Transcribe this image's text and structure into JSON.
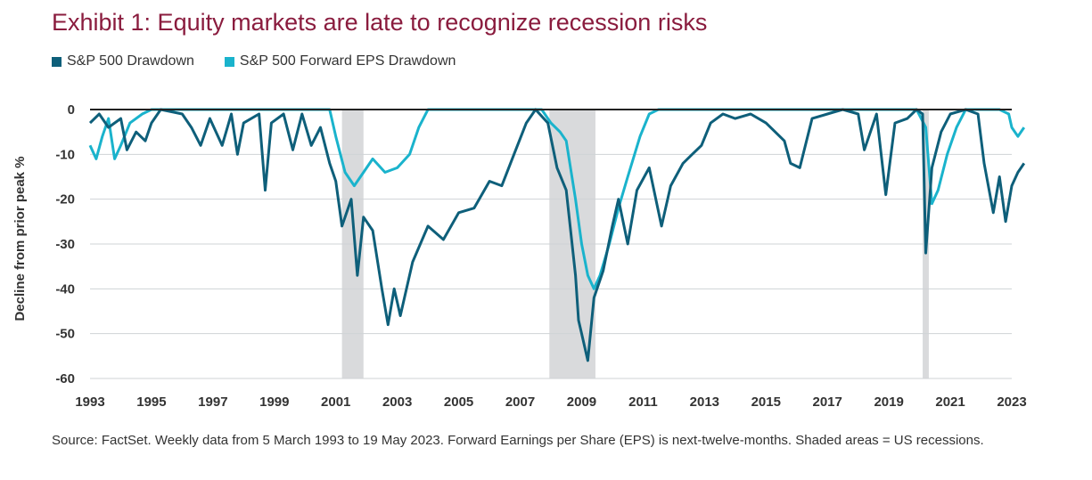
{
  "title": "Exhibit 1: Equity markets are late to recognize recession risks",
  "footnote": "Source: FactSet. Weekly data from 5 March 1993 to 19 May 2023. Forward Earnings per Share (EPS) is next-twelve-months. Shaded areas = US recessions.",
  "colors": {
    "spx": "#0e5f7a",
    "eps": "#1ab3cc",
    "recession": "#d9dadc",
    "grid": "#cfd3d6",
    "zero": "#222222",
    "title": "#8a1c3e"
  },
  "chart_data": {
    "type": "line",
    "title": "Exhibit 1: Equity markets are late to recognize recession risks",
    "ylabel": "Decline from prior peak %",
    "xlabel": "",
    "xlim": [
      1993,
      2023
    ],
    "ylim": [
      -60,
      0
    ],
    "x_ticks": [
      "1993",
      "1995",
      "1997",
      "1999",
      "2001",
      "2003",
      "2005",
      "2007",
      "2009",
      "2011",
      "2013",
      "2015",
      "2017",
      "2019",
      "2021",
      "2023"
    ],
    "y_ticks": [
      "0",
      "-10",
      "-20",
      "-30",
      "-40",
      "-50",
      "-60"
    ],
    "legend_position": "top-left",
    "grid": "horizontal",
    "recessions": [
      [
        2001.2,
        2001.9
      ],
      [
        2007.95,
        2009.45
      ],
      [
        2020.1,
        2020.3
      ]
    ],
    "series": [
      {
        "name": "S&P 500 Drawdown",
        "points": [
          [
            1993.0,
            -3
          ],
          [
            1993.3,
            -1
          ],
          [
            1993.6,
            -4
          ],
          [
            1994.0,
            -2
          ],
          [
            1994.2,
            -9
          ],
          [
            1994.5,
            -5
          ],
          [
            1994.8,
            -7
          ],
          [
            1995.0,
            -3
          ],
          [
            1995.3,
            0
          ],
          [
            1996.0,
            -1
          ],
          [
            1996.3,
            -4
          ],
          [
            1996.6,
            -8
          ],
          [
            1996.9,
            -2
          ],
          [
            1997.3,
            -8
          ],
          [
            1997.6,
            -1
          ],
          [
            1997.8,
            -10
          ],
          [
            1998.0,
            -3
          ],
          [
            1998.5,
            -1
          ],
          [
            1998.7,
            -18
          ],
          [
            1998.9,
            -3
          ],
          [
            1999.3,
            -1
          ],
          [
            1999.6,
            -9
          ],
          [
            1999.9,
            -1
          ],
          [
            2000.2,
            -8
          ],
          [
            2000.5,
            -4
          ],
          [
            2000.8,
            -12
          ],
          [
            2001.0,
            -16
          ],
          [
            2001.2,
            -26
          ],
          [
            2001.5,
            -20
          ],
          [
            2001.7,
            -37
          ],
          [
            2001.9,
            -24
          ],
          [
            2002.2,
            -27
          ],
          [
            2002.5,
            -40
          ],
          [
            2002.7,
            -48
          ],
          [
            2002.9,
            -40
          ],
          [
            2003.1,
            -46
          ],
          [
            2003.5,
            -34
          ],
          [
            2004.0,
            -26
          ],
          [
            2004.5,
            -29
          ],
          [
            2005.0,
            -23
          ],
          [
            2005.5,
            -22
          ],
          [
            2006.0,
            -16
          ],
          [
            2006.4,
            -17
          ],
          [
            2006.8,
            -10
          ],
          [
            2007.2,
            -3
          ],
          [
            2007.5,
            0
          ],
          [
            2007.9,
            -3
          ],
          [
            2008.2,
            -13
          ],
          [
            2008.5,
            -18
          ],
          [
            2008.8,
            -37
          ],
          [
            2008.9,
            -47
          ],
          [
            2009.0,
            -50
          ],
          [
            2009.2,
            -56
          ],
          [
            2009.4,
            -42
          ],
          [
            2009.7,
            -36
          ],
          [
            2010.0,
            -26
          ],
          [
            2010.2,
            -20
          ],
          [
            2010.5,
            -30
          ],
          [
            2010.8,
            -18
          ],
          [
            2011.2,
            -13
          ],
          [
            2011.6,
            -26
          ],
          [
            2011.9,
            -17
          ],
          [
            2012.3,
            -12
          ],
          [
            2012.6,
            -10
          ],
          [
            2012.9,
            -8
          ],
          [
            2013.2,
            -3
          ],
          [
            2013.6,
            -1
          ],
          [
            2014.0,
            -2
          ],
          [
            2014.5,
            -1
          ],
          [
            2015.0,
            -3
          ],
          [
            2015.6,
            -7
          ],
          [
            2015.8,
            -12
          ],
          [
            2016.1,
            -13
          ],
          [
            2016.5,
            -2
          ],
          [
            2017.0,
            -1
          ],
          [
            2017.5,
            0
          ],
          [
            2018.0,
            -1
          ],
          [
            2018.2,
            -9
          ],
          [
            2018.6,
            -1
          ],
          [
            2018.9,
            -19
          ],
          [
            2019.2,
            -3
          ],
          [
            2019.6,
            -2
          ],
          [
            2019.9,
            0
          ],
          [
            2020.1,
            -1
          ],
          [
            2020.2,
            -32
          ],
          [
            2020.4,
            -13
          ],
          [
            2020.7,
            -5
          ],
          [
            2021.0,
            -1
          ],
          [
            2021.5,
            0
          ],
          [
            2021.9,
            -1
          ],
          [
            2022.1,
            -12
          ],
          [
            2022.4,
            -23
          ],
          [
            2022.6,
            -15
          ],
          [
            2022.8,
            -25
          ],
          [
            2023.0,
            -17
          ],
          [
            2023.2,
            -14
          ],
          [
            2023.4,
            -12
          ]
        ]
      },
      {
        "name": "S&P 500 Forward EPS Drawdown",
        "points": [
          [
            1993.0,
            -8
          ],
          [
            1993.2,
            -11
          ],
          [
            1993.4,
            -6
          ],
          [
            1993.6,
            -2
          ],
          [
            1993.8,
            -11
          ],
          [
            1994.0,
            -8
          ],
          [
            1994.3,
            -3
          ],
          [
            1994.7,
            -1
          ],
          [
            1995.0,
            0
          ],
          [
            2000.8,
            0
          ],
          [
            2001.0,
            -6
          ],
          [
            2001.3,
            -14
          ],
          [
            2001.6,
            -17
          ],
          [
            2001.9,
            -14
          ],
          [
            2002.2,
            -11
          ],
          [
            2002.6,
            -14
          ],
          [
            2003.0,
            -13
          ],
          [
            2003.4,
            -10
          ],
          [
            2003.7,
            -4
          ],
          [
            2004.0,
            0
          ],
          [
            2007.7,
            0
          ],
          [
            2008.0,
            -3
          ],
          [
            2008.3,
            -5
          ],
          [
            2008.5,
            -7
          ],
          [
            2008.8,
            -20
          ],
          [
            2009.0,
            -30
          ],
          [
            2009.2,
            -37
          ],
          [
            2009.4,
            -40
          ],
          [
            2009.6,
            -37
          ],
          [
            2009.9,
            -30
          ],
          [
            2010.2,
            -22
          ],
          [
            2010.5,
            -15
          ],
          [
            2010.9,
            -6
          ],
          [
            2011.2,
            -1
          ],
          [
            2011.5,
            0
          ],
          [
            2019.9,
            0
          ],
          [
            2020.2,
            -4
          ],
          [
            2020.4,
            -21
          ],
          [
            2020.6,
            -18
          ],
          [
            2020.9,
            -10
          ],
          [
            2021.2,
            -4
          ],
          [
            2021.5,
            0
          ],
          [
            2022.6,
            0
          ],
          [
            2022.9,
            -1
          ],
          [
            2023.0,
            -4
          ],
          [
            2023.2,
            -6
          ],
          [
            2023.4,
            -4
          ]
        ]
      }
    ]
  }
}
